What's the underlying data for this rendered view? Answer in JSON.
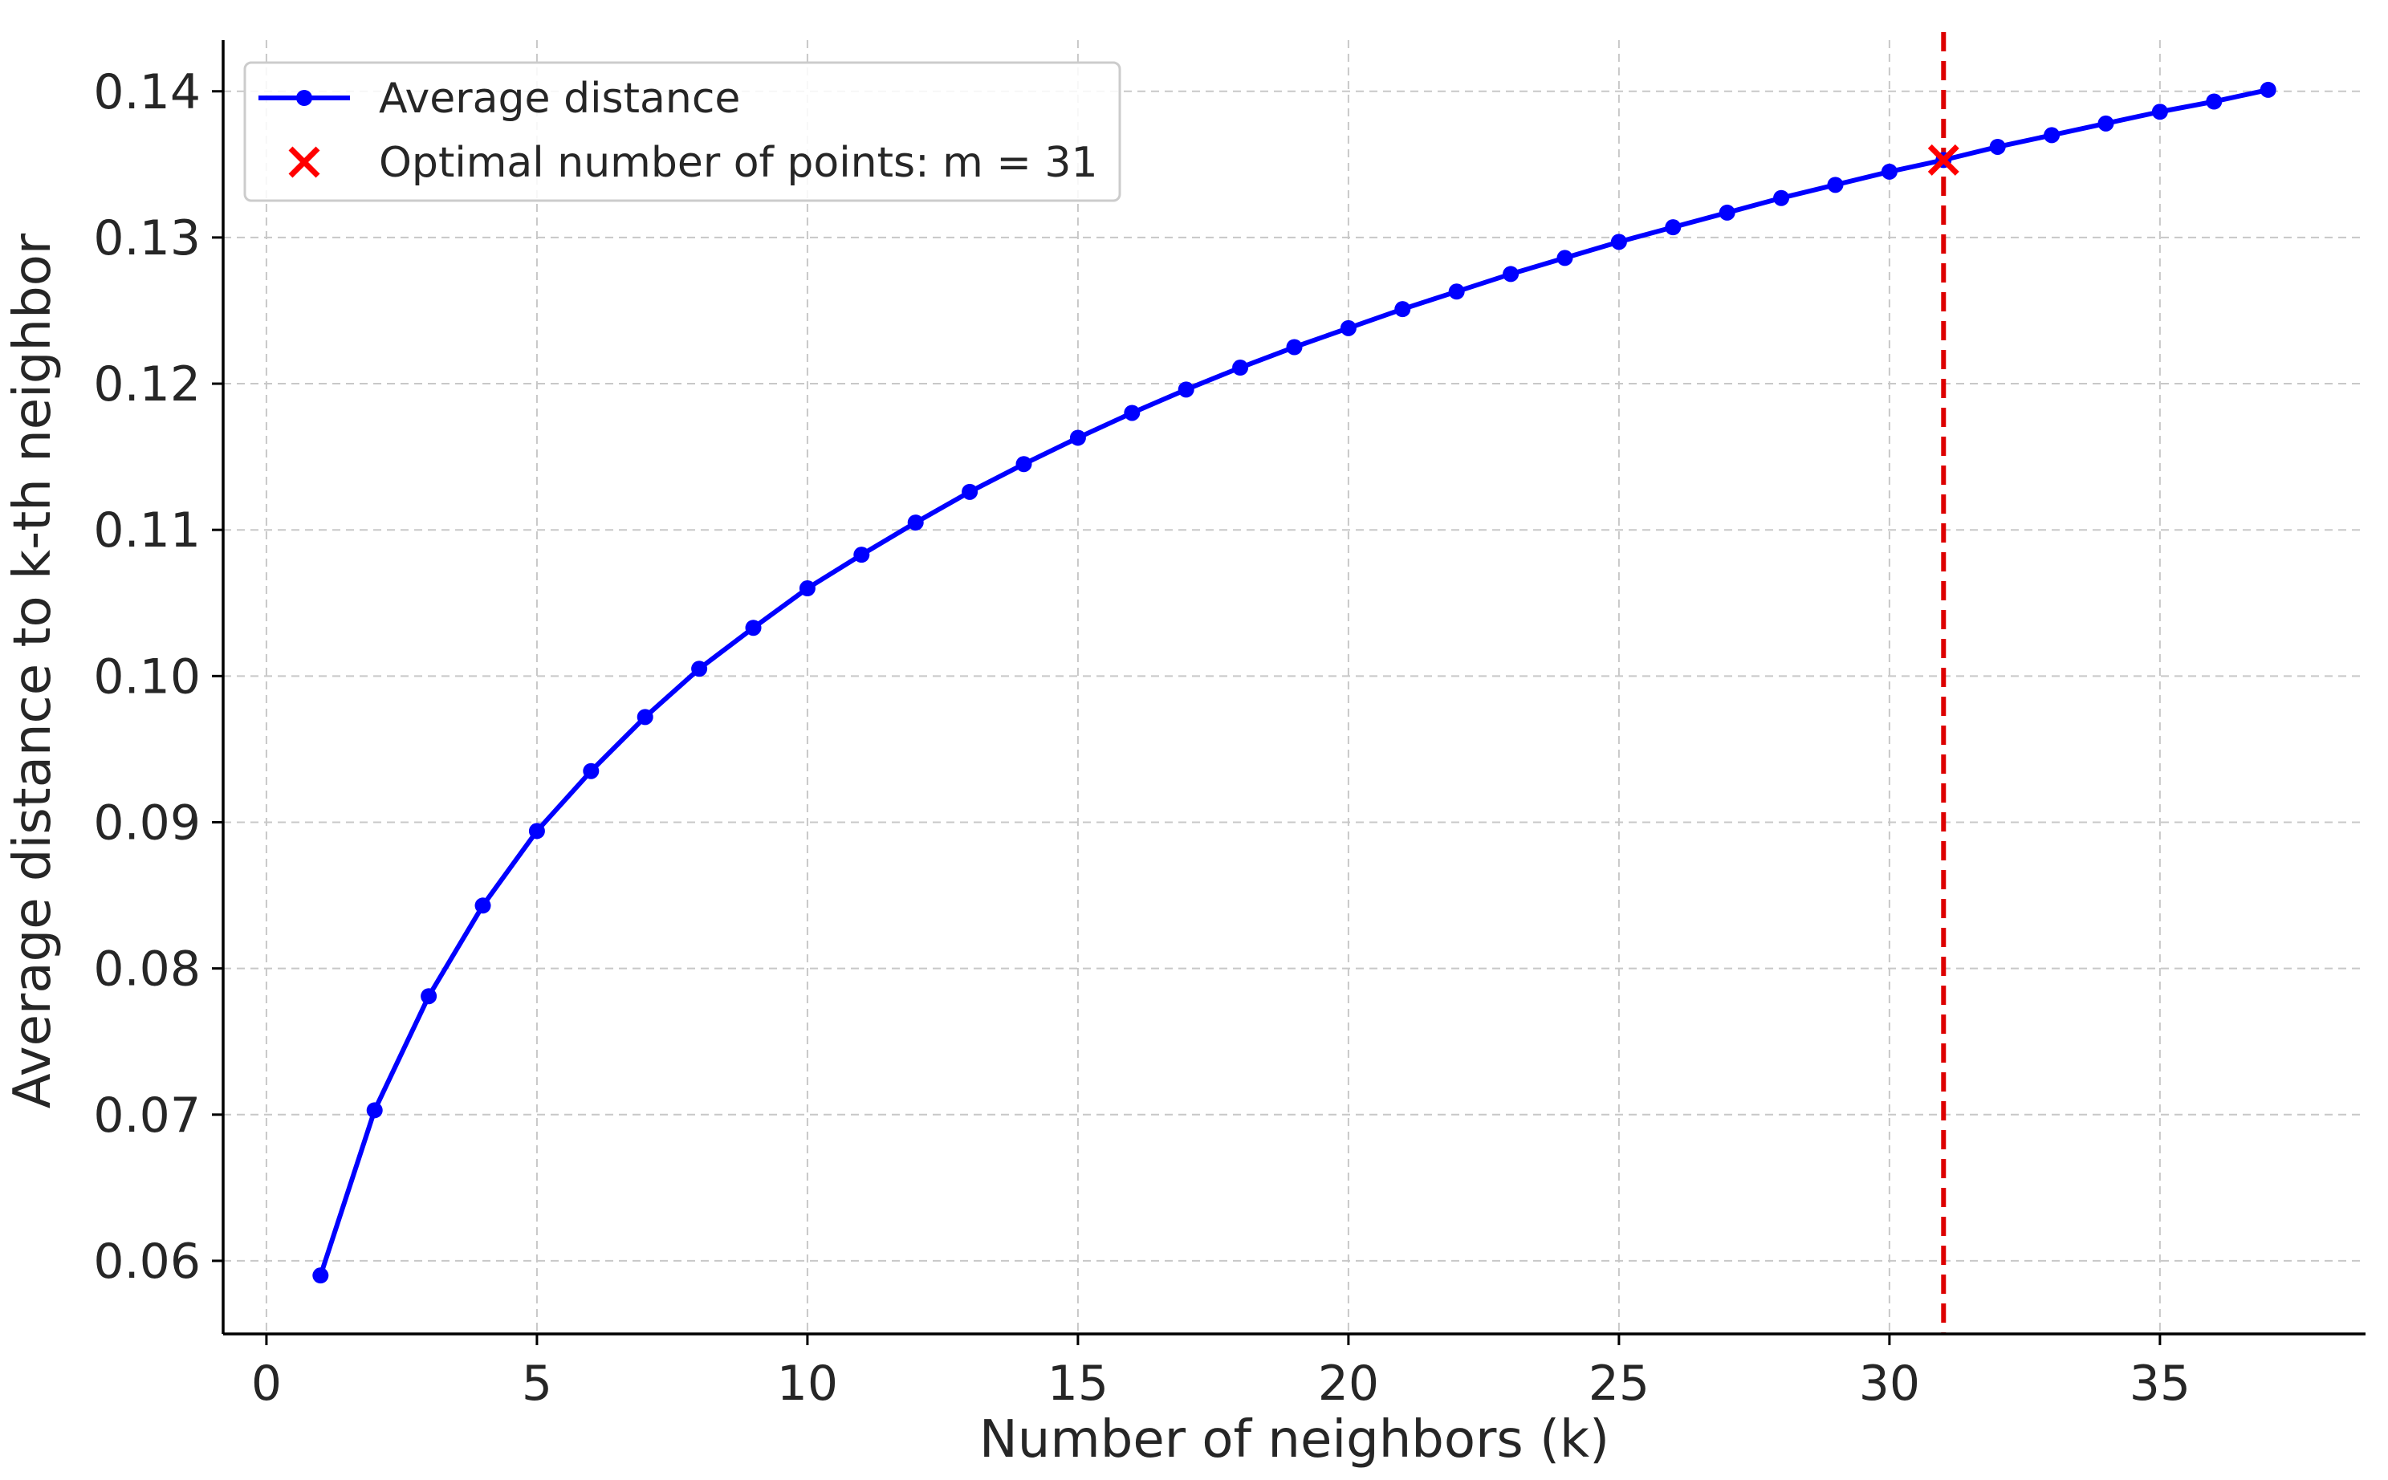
{
  "chart_data": {
    "type": "line",
    "title": "",
    "xlabel": "Number of neighbors (k)",
    "ylabel": "Average distance to k-th neighbor",
    "xlim": [
      -0.8,
      38.8
    ],
    "ylim": [
      0.055,
      0.1435
    ],
    "xticks": [
      0,
      5,
      10,
      15,
      20,
      25,
      30,
      35
    ],
    "yticks": [
      0.06,
      0.07,
      0.08,
      0.09,
      0.1,
      0.11,
      0.12,
      0.13,
      0.14
    ],
    "xtick_labels": [
      "0",
      "5",
      "10",
      "15",
      "20",
      "25",
      "30",
      "35"
    ],
    "ytick_labels": [
      "0.06",
      "0.07",
      "0.08",
      "0.09",
      "0.10",
      "0.11",
      "0.12",
      "0.13",
      "0.14"
    ],
    "grid": true,
    "legend_position": "top-left",
    "series": [
      {
        "name": "Average distance",
        "color": "#0000ff",
        "marker": "circle",
        "x": [
          1,
          2,
          3,
          4,
          5,
          6,
          7,
          8,
          9,
          10,
          11,
          12,
          13,
          14,
          15,
          16,
          17,
          18,
          19,
          20,
          21,
          22,
          23,
          24,
          25,
          26,
          27,
          28,
          29,
          30,
          31,
          32,
          33,
          34,
          35,
          36,
          37
        ],
        "values": [
          0.059,
          0.0703,
          0.0781,
          0.0843,
          0.0894,
          0.0935,
          0.0972,
          0.1005,
          0.1033,
          0.106,
          0.1083,
          0.1105,
          0.1126,
          0.1145,
          0.1163,
          0.118,
          0.1196,
          0.1211,
          0.1225,
          0.1238,
          0.1251,
          0.1263,
          0.1275,
          0.1286,
          0.1297,
          0.1307,
          0.1317,
          0.1327,
          0.1336,
          0.1345,
          0.1353,
          0.1362,
          0.137,
          0.1378,
          0.1386,
          0.1393,
          0.1401
        ]
      }
    ],
    "optimal_point": {
      "name": "Optimal number of points: m = 31",
      "x": 31,
      "y": 0.1353,
      "marker": "x",
      "color": "#ff0000"
    },
    "vertical_line": {
      "x": 31,
      "color": "#dd0000",
      "style": "dashed"
    }
  }
}
